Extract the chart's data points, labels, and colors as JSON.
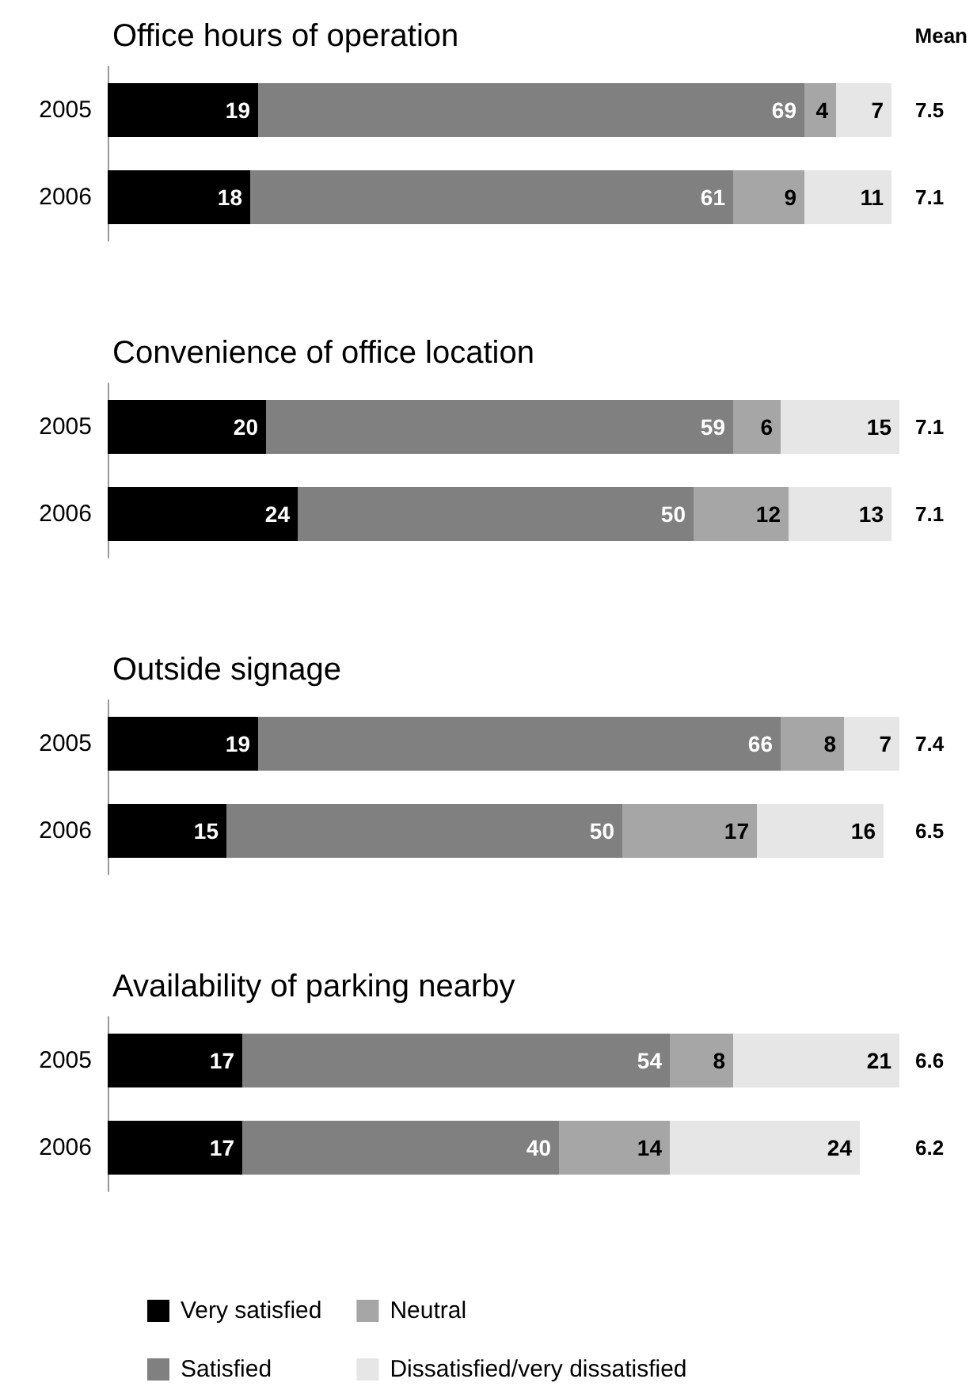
{
  "chart_data": [
    {
      "type": "bar",
      "title": "Office hours of operation",
      "orientation": "horizontal",
      "stacked": true,
      "data_labels": true,
      "legend": false,
      "categories": [
        "2005",
        "2006"
      ],
      "series": [
        {
          "color": "#000000",
          "values": [
            19,
            18
          ]
        },
        {
          "color": "#808080",
          "values": [
            69,
            61
          ]
        },
        {
          "color": "#a6a6a6",
          "values": [
            4,
            9
          ]
        },
        {
          "color": "#e6e6e6",
          "values": [
            7,
            11
          ]
        }
      ],
      "annotations": [
        "Mean",
        "7.5",
        "7.1"
      ]
    },
    {
      "type": "bar",
      "title": "Convenience of office location",
      "orientation": "horizontal",
      "stacked": true,
      "data_labels": true,
      "legend": false,
      "categories": [
        "2005",
        "2006"
      ],
      "series": [
        {
          "color": "#000000",
          "values": [
            20,
            24
          ]
        },
        {
          "color": "#808080",
          "values": [
            59,
            50
          ]
        },
        {
          "color": "#a6a6a6",
          "values": [
            6,
            12
          ]
        },
        {
          "color": "#e6e6e6",
          "values": [
            15,
            13
          ]
        }
      ],
      "annotations": [
        "7.1",
        "7.1"
      ]
    },
    {
      "type": "bar",
      "title": "Outside signage",
      "orientation": "horizontal",
      "stacked": true,
      "data_labels": true,
      "legend": false,
      "categories": [
        "2005",
        "2006"
      ],
      "series": [
        {
          "color": "#000000",
          "values": [
            19,
            15
          ]
        },
        {
          "color": "#808080",
          "values": [
            66,
            50
          ]
        },
        {
          "color": "#a6a6a6",
          "values": [
            8,
            17
          ]
        },
        {
          "color": "#e6e6e6",
          "values": [
            7,
            16
          ]
        }
      ],
      "annotations": [
        "7.4",
        "6.5"
      ]
    },
    {
      "type": "bar",
      "title": "Availability of parking nearby",
      "orientation": "horizontal",
      "stacked": true,
      "data_labels": true,
      "legend": "bottom",
      "categories": [
        "2005",
        "2006"
      ],
      "series": [
        {
          "name": "Very satisfied",
          "color": "#000000",
          "values": [
            17,
            17
          ]
        },
        {
          "name": "Satisfied",
          "color": "#808080",
          "values": [
            54,
            40
          ]
        },
        {
          "name": "Neutral",
          "color": "#a6a6a6",
          "values": [
            8,
            14
          ]
        },
        {
          "name": "Dissatisfied/very dissatisfied",
          "color": "#e6e6e6",
          "values": [
            21,
            24
          ]
        }
      ],
      "annotations": [
        "6.6",
        "6.2"
      ]
    }
  ]
}
